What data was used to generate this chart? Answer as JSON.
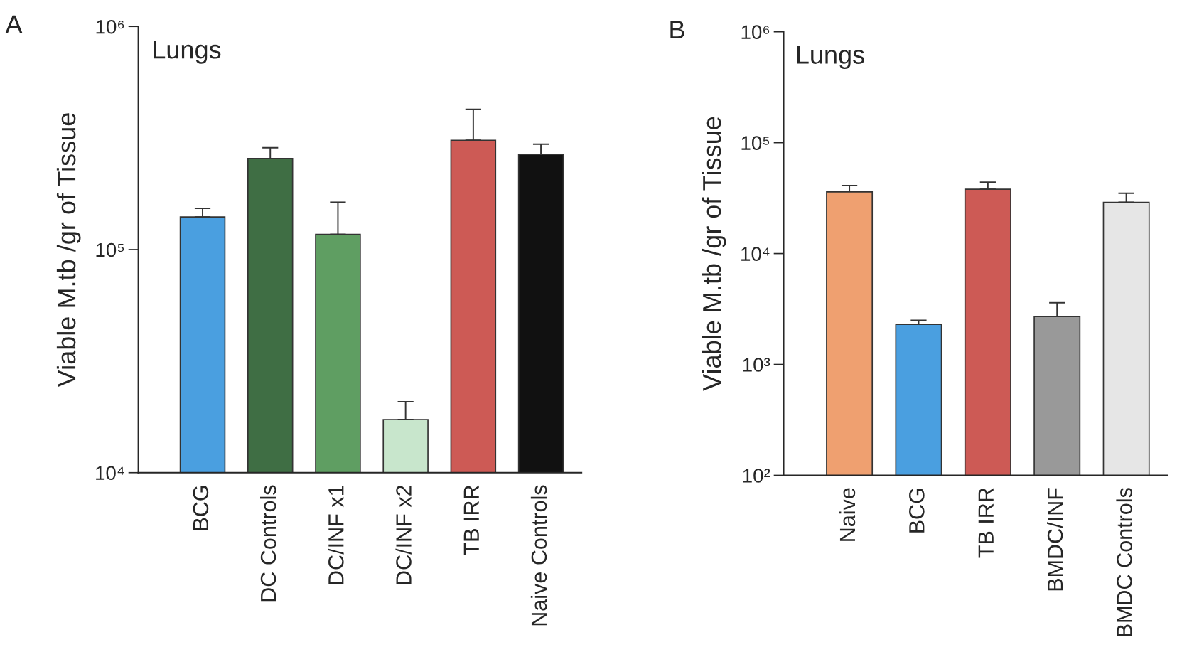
{
  "chart_data": [
    {
      "type": "bar",
      "title": "Lungs",
      "ylabel": "Viable M.tb /gr of Tissue",
      "annotations": [
        "A"
      ],
      "log": true,
      "categories": [
        "BCG",
        "DC Controls",
        "DC/INF x1",
        "DC/INF x2",
        "TB IRR",
        "Naive Controls"
      ],
      "values": [
        140000,
        256000,
        117000,
        17300,
        309000,
        267000
      ],
      "errors": [
        [
          140000,
          153000
        ],
        [
          256000,
          286000
        ],
        [
          117000,
          163000
        ],
        [
          17300,
          20800
        ],
        [
          309000,
          425000
        ],
        [
          267000,
          297000
        ]
      ],
      "colors": [
        "#4a9fe0",
        "#3f6e44",
        "#5f9e62",
        "#c8e6cc",
        "#cd5a55",
        "#111111"
      ],
      "ylim": [
        10000,
        1000000
      ],
      "yticks": [
        {
          "value": 10000,
          "label": "10⁴"
        },
        {
          "value": 100000,
          "label": "10⁵"
        },
        {
          "value": 1000000,
          "label": "10⁶"
        }
      ]
    },
    {
      "type": "bar",
      "title": "Lungs",
      "ylabel": "Viable M.tb /gr of Tissue",
      "annotations": [
        "B"
      ],
      "log": true,
      "categories": [
        "Naive",
        "BCG",
        "TB IRR",
        "BMDC/INF",
        "BMDC Controls"
      ],
      "values": [
        36000,
        2300,
        38000,
        2700,
        29000
      ],
      "errors": [
        [
          36000,
          41000
        ],
        [
          2300,
          2500
        ],
        [
          38000,
          44000
        ],
        [
          2700,
          3600
        ],
        [
          29000,
          35000
        ]
      ],
      "colors": [
        "#efa070",
        "#4a9fe0",
        "#cd5a55",
        "#999999",
        "#e6e6e6"
      ],
      "ylim": [
        100,
        1000000
      ],
      "yticks": [
        {
          "value": 100,
          "label": "10²"
        },
        {
          "value": 1000,
          "label": "10³"
        },
        {
          "value": 10000,
          "label": "10⁴"
        },
        {
          "value": 100000,
          "label": "10⁵"
        },
        {
          "value": 1000000,
          "label": "10⁶"
        }
      ]
    }
  ]
}
